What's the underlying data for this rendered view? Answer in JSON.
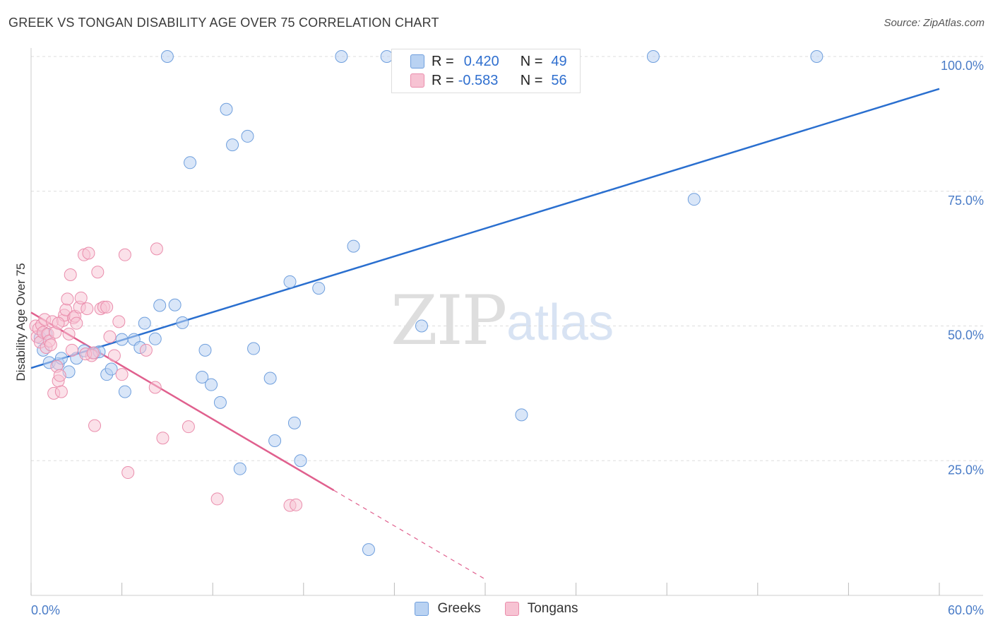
{
  "header": {
    "title": "GREEK VS TONGAN DISABILITY AGE OVER 75 CORRELATION CHART",
    "source": "Source: ZipAtlas.com"
  },
  "watermark": {
    "zip": "ZIP",
    "atlas": "atlas"
  },
  "legend": {
    "rows": [
      {
        "r_label": "R =",
        "r_value": "0.420",
        "n_label": "N =",
        "n_value": "49"
      },
      {
        "r_label": "R =",
        "r_value": "-0.583",
        "n_label": "N =",
        "n_value": "56"
      }
    ]
  },
  "bottom_legend": {
    "greeks": "Greeks",
    "tongans": "Tongans"
  },
  "colors": {
    "greeks_fill": "#b9d2f2",
    "greeks_stroke": "#6f9fdd",
    "greeks_line": "#2a6fcf",
    "tongans_fill": "#f7c3d3",
    "tongans_stroke": "#ea8dac",
    "tongans_line": "#e0608e",
    "grid": "#dddddd",
    "tick_text": "#4a7cc7"
  },
  "chart_data": {
    "type": "scatter",
    "title": "GREEK VS TONGAN DISABILITY AGE OVER 75 CORRELATION CHART",
    "ylabel": "Disability Age Over 75",
    "xlim": [
      0,
      60
    ],
    "ylim": [
      0,
      100
    ],
    "x_tick_labels": [
      "0.0%",
      "60.0%"
    ],
    "y_ticks": [
      25,
      50,
      75,
      100
    ],
    "y_tick_labels": [
      "25.0%",
      "50.0%",
      "75.0%",
      "100.0%"
    ],
    "grid": true,
    "series": [
      {
        "name": "Greeks",
        "r": 0.42,
        "n": 49,
        "trend": {
          "x": [
            0,
            60
          ],
          "y": [
            42.2,
            94.0
          ],
          "dashed_extension": false
        },
        "points": [
          [
            0.8,
            45.5
          ],
          [
            1.2,
            43.2
          ],
          [
            1.8,
            43.0
          ],
          [
            2.5,
            41.5
          ],
          [
            3.0,
            44.0
          ],
          [
            3.5,
            45.4
          ],
          [
            4.2,
            45.0
          ],
          [
            4.5,
            45.2
          ],
          [
            5.0,
            41.0
          ],
          [
            5.3,
            42.0
          ],
          [
            6.0,
            47.5
          ],
          [
            6.2,
            37.8
          ],
          [
            6.8,
            47.5
          ],
          [
            7.2,
            46.0
          ],
          [
            7.5,
            50.5
          ],
          [
            8.2,
            47.6
          ],
          [
            8.5,
            53.8
          ],
          [
            9.0,
            100.0
          ],
          [
            9.5,
            53.9
          ],
          [
            10.0,
            50.6
          ],
          [
            10.5,
            80.3
          ],
          [
            11.3,
            40.5
          ],
          [
            11.5,
            45.5
          ],
          [
            11.9,
            39.1
          ],
          [
            12.5,
            35.8
          ],
          [
            12.9,
            90.2
          ],
          [
            13.3,
            83.6
          ],
          [
            13.8,
            23.5
          ],
          [
            14.3,
            85.2
          ],
          [
            14.7,
            45.8
          ],
          [
            15.8,
            40.3
          ],
          [
            16.1,
            28.7
          ],
          [
            17.1,
            58.2
          ],
          [
            17.4,
            32.0
          ],
          [
            17.8,
            25.0
          ],
          [
            19.0,
            57.0
          ],
          [
            20.5,
            100.0
          ],
          [
            21.3,
            64.8
          ],
          [
            22.3,
            8.5
          ],
          [
            23.5,
            100.0
          ],
          [
            24.5,
            100.0
          ],
          [
            25.8,
            50.0
          ],
          [
            32.4,
            33.5
          ],
          [
            41.1,
            100.0
          ],
          [
            43.8,
            73.5
          ],
          [
            51.9,
            100.0
          ],
          [
            0.6,
            47.8
          ],
          [
            1.0,
            48.5
          ],
          [
            2.0,
            44.0
          ]
        ]
      },
      {
        "name": "Tongans",
        "r": -0.583,
        "n": 56,
        "trend": {
          "x": [
            0,
            20
          ],
          "y": [
            52.5,
            19.5
          ],
          "dashed_extension": true,
          "dashed_to": [
            30,
            3.0
          ]
        },
        "points": [
          [
            0.3,
            50.0
          ],
          [
            0.4,
            48.0
          ],
          [
            0.5,
            49.5
          ],
          [
            0.6,
            47.0
          ],
          [
            0.7,
            50.2
          ],
          [
            0.8,
            48.8
          ],
          [
            0.9,
            51.2
          ],
          [
            1.0,
            46.0
          ],
          [
            1.1,
            48.5
          ],
          [
            1.2,
            47.2
          ],
          [
            1.3,
            46.5
          ],
          [
            1.4,
            50.8
          ],
          [
            1.5,
            37.5
          ],
          [
            1.6,
            48.8
          ],
          [
            1.7,
            42.5
          ],
          [
            1.8,
            39.8
          ],
          [
            1.9,
            40.8
          ],
          [
            2.0,
            37.8
          ],
          [
            2.1,
            51.0
          ],
          [
            2.2,
            52.0
          ],
          [
            2.3,
            53.0
          ],
          [
            2.4,
            55.0
          ],
          [
            2.5,
            48.5
          ],
          [
            2.6,
            59.5
          ],
          [
            2.7,
            45.5
          ],
          [
            2.8,
            51.5
          ],
          [
            2.9,
            51.8
          ],
          [
            3.0,
            50.5
          ],
          [
            3.2,
            53.5
          ],
          [
            3.3,
            55.2
          ],
          [
            3.5,
            63.2
          ],
          [
            3.7,
            53.2
          ],
          [
            3.8,
            63.5
          ],
          [
            4.0,
            44.5
          ],
          [
            4.2,
            31.5
          ],
          [
            4.4,
            60.0
          ],
          [
            4.6,
            53.2
          ],
          [
            4.8,
            53.5
          ],
          [
            5.0,
            53.5
          ],
          [
            5.2,
            48.0
          ],
          [
            5.5,
            44.5
          ],
          [
            5.8,
            50.8
          ],
          [
            6.0,
            41.0
          ],
          [
            6.2,
            63.2
          ],
          [
            6.4,
            22.8
          ],
          [
            7.6,
            45.5
          ],
          [
            8.2,
            38.6
          ],
          [
            8.3,
            64.3
          ],
          [
            8.7,
            29.2
          ],
          [
            10.4,
            31.3
          ],
          [
            12.3,
            17.9
          ],
          [
            17.1,
            16.7
          ],
          [
            17.5,
            16.8
          ],
          [
            3.6,
            44.8
          ],
          [
            4.1,
            45.0
          ],
          [
            1.8,
            50.5
          ]
        ]
      }
    ]
  }
}
